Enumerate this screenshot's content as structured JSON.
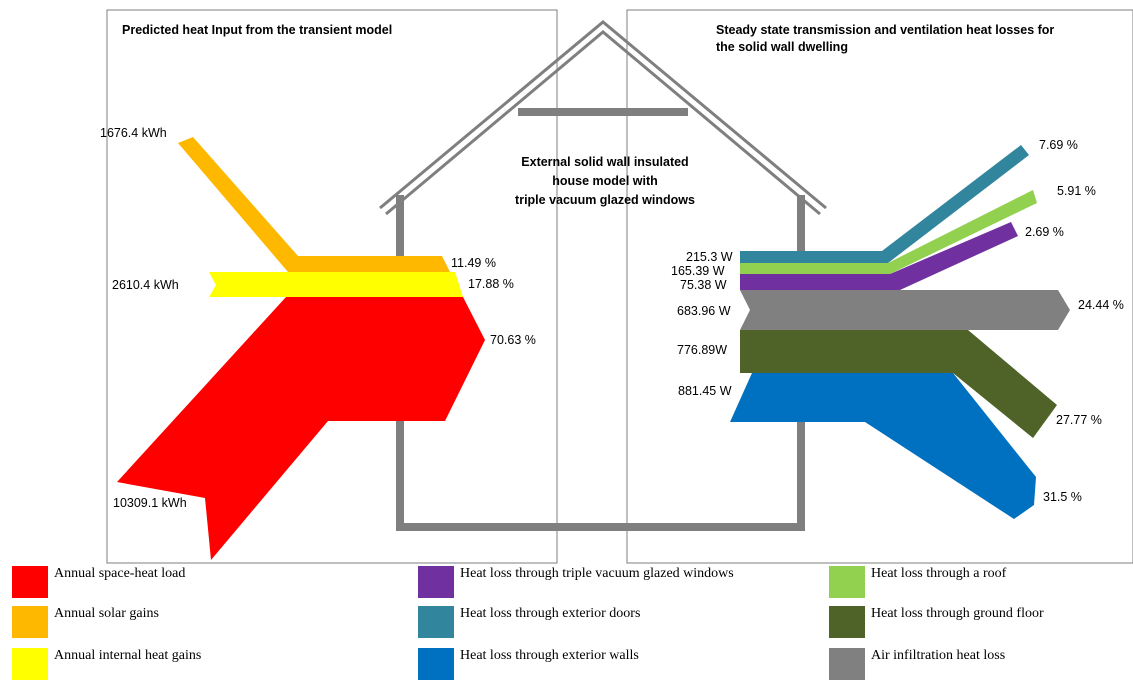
{
  "titles": {
    "left": "Predicted heat Input from the transient model",
    "right_line1": "Steady state transmission and ventilation heat losses for",
    "right_line2": "the solid wall dwelling"
  },
  "center_label": {
    "line1": "External solid wall insulated",
    "line2": "house model with",
    "line3": "triple vacuum glazed windows"
  },
  "inputs": [
    {
      "name": "Annual solar gains",
      "energy": "1676.4 kWh",
      "percent": "11.49 %",
      "color": "#FFB800"
    },
    {
      "name": "Annual internal heat gains",
      "energy": "2610.4 kWh",
      "percent": "17.88 %",
      "color": "#FFFF00"
    },
    {
      "name": "Annual space-heat load",
      "energy": "10309.1 kWh",
      "percent": "70.63 %",
      "color": "#FF0000"
    }
  ],
  "losses": [
    {
      "name": "Heat loss through exterior doors",
      "power": "215.3 W",
      "percent": "7.69 %",
      "color": "#31859C"
    },
    {
      "name": "Heat loss through a roof",
      "power": "165.39 W",
      "percent": "5.91 %",
      "color": "#92D050"
    },
    {
      "name": "Heat loss through triple vacuum glazed windows",
      "power": "75.38 W",
      "percent": "2.69 %",
      "color": "#7030A0"
    },
    {
      "name": "Air infiltration heat loss",
      "power": "683.96 W",
      "percent": "24.44 %",
      "color": "#808080"
    },
    {
      "name": "Heat loss through ground floor",
      "power": "776.89W",
      "percent": "27.77 %",
      "color": "#4F6228"
    },
    {
      "name": "Heat loss through exterior walls",
      "power": "881.45 W",
      "percent": "31.5 %",
      "color": "#0070C0"
    }
  ],
  "legend": [
    {
      "label": "Annual space-heat load",
      "color": "#FF0000"
    },
    {
      "label": "Annual solar gains",
      "color": "#FFB800"
    },
    {
      "label": "Annual internal heat gains",
      "color": "#FFFF00"
    },
    {
      "label": "Heat loss through triple vacuum glazed windows",
      "color": "#7030A0"
    },
    {
      "label": "Heat loss through exterior doors",
      "color": "#31859C"
    },
    {
      "label": "Heat loss through exterior walls",
      "color": "#0070C0"
    },
    {
      "label": "Heat loss through a roof",
      "color": "#92D050"
    },
    {
      "label": "Heat loss through ground floor",
      "color": "#4F6228"
    },
    {
      "label": "Air infiltration heat loss",
      "color": "#808080"
    }
  ],
  "colors": {
    "house_outline": "#7F7F7F",
    "panel_border": "#7F7F7F"
  }
}
